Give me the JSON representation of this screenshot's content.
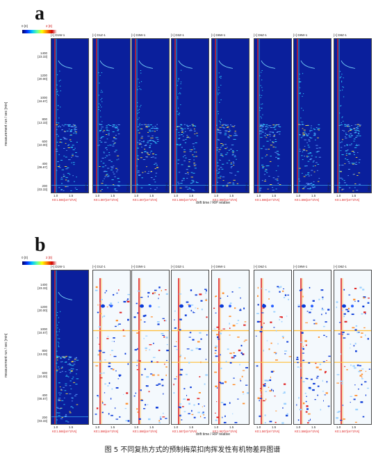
{
  "panels": [
    {
      "letter": "a",
      "legend_min": "0 [0]",
      "legend_max": "2 [0]",
      "ylabel": "measurement run / sec [min]",
      "xlabel": "drift time / RIP relative",
      "mode": "full",
      "strips": [
        {
          "title": "[+] D1W-1",
          "side": "D1W-1",
          "red": "K0:1.566[cm^2/Vs]"
        },
        {
          "title": "[+] D1Z-1",
          "side": "D1Z-1",
          "red": "K0:1.567[cm^2/Vs]"
        },
        {
          "title": "[+] D3W-1",
          "side": "D3W-1",
          "red": "K0:1.567[cm^2/Vs]"
        },
        {
          "title": "[+] D3Z-1",
          "side": "D3Z-1",
          "red": "K0:1.566[cm^2/Vs]"
        },
        {
          "title": "[+] D6W-1",
          "side": "D6W-1",
          "red": "K0:1.566[cm^2/Vs]"
        },
        {
          "title": "[+] D6Z-1",
          "side": "D6Z-1",
          "red": "K0:1.566[cm^2/Vs]"
        },
        {
          "title": "[+] D8W-1",
          "side": "D8W-1",
          "red": "K0:1.566[cm^2/Vs]"
        },
        {
          "title": "[+] D8Z-1",
          "side": "D8Z-1",
          "red": "K0:1.567[cm^2/Vs]"
        }
      ]
    },
    {
      "letter": "b",
      "legend_min": "0 [0]",
      "legend_max": "2 [0]",
      "ylabel": "measurement run / sec [min]",
      "xlabel": "drift time / RIP relative",
      "mode": "diff",
      "strips": [
        {
          "title": "[+] D1W-1",
          "side": "",
          "red": "K0:1.566[cm^2/Vs]"
        },
        {
          "title": "[+] D1Z-1",
          "side": "",
          "red": "K0:1.566[cm^2/Vs]"
        },
        {
          "title": "[+] D3W-1",
          "side": "",
          "red": "K0:1.566[cm^2/Vs]"
        },
        {
          "title": "[+] D3Z-1",
          "side": "",
          "red": "K0:1.567[cm^2/Vs]"
        },
        {
          "title": "[+] D6W-1",
          "side": "",
          "red": "K0:1.567[cm^2/Vs]"
        },
        {
          "title": "[+] D6Z-1",
          "side": "",
          "red": "K0:1.567[cm^2/Vs]"
        },
        {
          "title": "[+] D8W-1",
          "side": "",
          "red": "K0:1.566[cm^2/Vs]"
        },
        {
          "title": "[+] D8Z-1",
          "side": "",
          "red": "K0:1.567[cm^2/Vs]"
        }
      ]
    }
  ],
  "yticks": [
    {
      "v": 1400,
      "t": "1400",
      "m": "[23.33]"
    },
    {
      "v": 1200,
      "t": "1200",
      "m": "[20.00]"
    },
    {
      "v": 1000,
      "t": "1000",
      "m": "[16.67]"
    },
    {
      "v": 800,
      "t": "800",
      "m": "[13.33]"
    },
    {
      "v": 600,
      "t": "600",
      "m": "[10.00]"
    },
    {
      "v": 400,
      "t": "400",
      "m": "[06.67]"
    },
    {
      "v": 200,
      "t": "200",
      "m": "[03.33]"
    }
  ],
  "xticks": [
    "1.0",
    "1.5"
  ],
  "caption": "图 5  不同复热方式的预制梅菜扣肉挥发性有机物差异图谱",
  "colors": {
    "bg_full": "#0a1f9c",
    "bg_diff": "#f4f9fd",
    "red": "#e02020",
    "blue": "#0a3ad8",
    "cyan": "#30d0ff",
    "yellow": "#ffe040"
  },
  "chart_data": {
    "type": "heatmap",
    "panels": [
      "a",
      "b"
    ],
    "samples": [
      "D1W-1",
      "D1Z-1",
      "D3W-1",
      "D3Z-1",
      "D6W-1",
      "D6Z-1",
      "D8W-1",
      "D8Z-1"
    ],
    "xlabel": "drift time / RIP relative",
    "ylabel": "measurement run / sec [min]",
    "x_ticks": [
      1.0,
      1.5
    ],
    "y_ticks": [
      200,
      400,
      600,
      800,
      1000,
      1200,
      1400
    ],
    "ylim": [
      150,
      1550
    ],
    "colorbar": [
      "0 [0]",
      "2 [0]"
    ]
  }
}
